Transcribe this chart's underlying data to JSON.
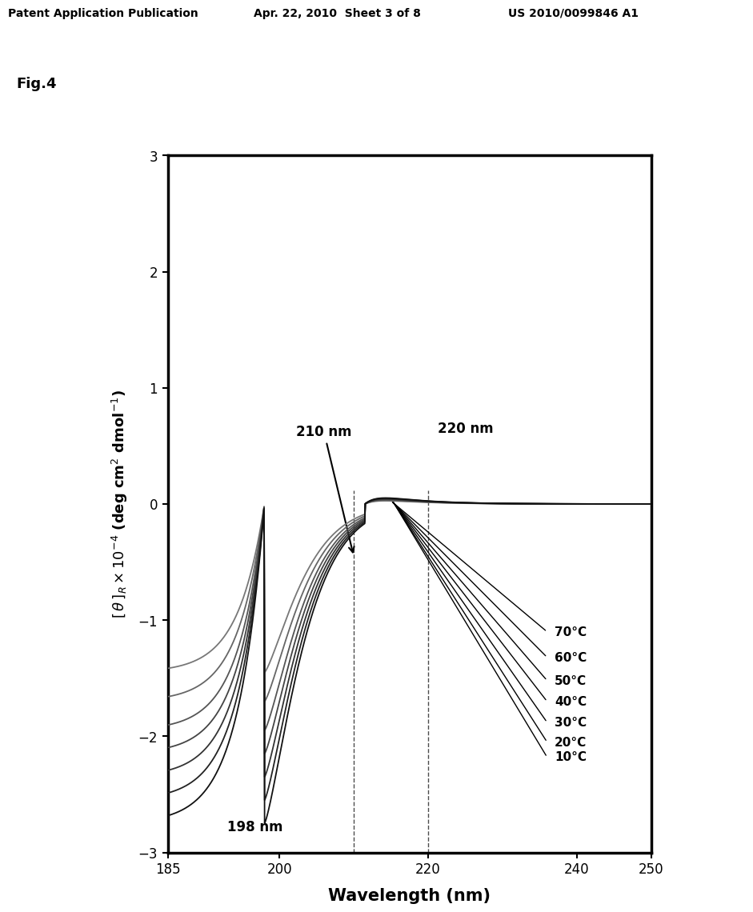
{
  "title_left": "Patent Application Publication",
  "title_center": "Apr. 22, 2010  Sheet 3 of 8",
  "title_right": "US 2010/0099846 A1",
  "fig_label": "Fig.4",
  "xlabel": "Wavelength (nm)",
  "xlim": [
    185,
    250
  ],
  "ylim": [
    -3,
    3
  ],
  "xticks": [
    185,
    200,
    220,
    240,
    250
  ],
  "yticks": [
    -3,
    -2,
    -1,
    0,
    1,
    2,
    3
  ],
  "temperatures": [
    "10°C",
    "20°C",
    "30°C",
    "40°C",
    "50°C",
    "60°C",
    "70°C"
  ],
  "min_values": [
    -2.75,
    -2.55,
    -2.35,
    -2.15,
    -1.95,
    -1.7,
    -1.45
  ],
  "annotation_210": "210 nm",
  "annotation_220": "220 nm",
  "annotation_198": "198 nm",
  "background_color": "#ffffff",
  "header_fontsize": 10,
  "fig_label_fontsize": 13,
  "axis_label_fontsize": 13,
  "tick_fontsize": 12,
  "annot_fontsize": 12,
  "temp_fontsize": 11
}
